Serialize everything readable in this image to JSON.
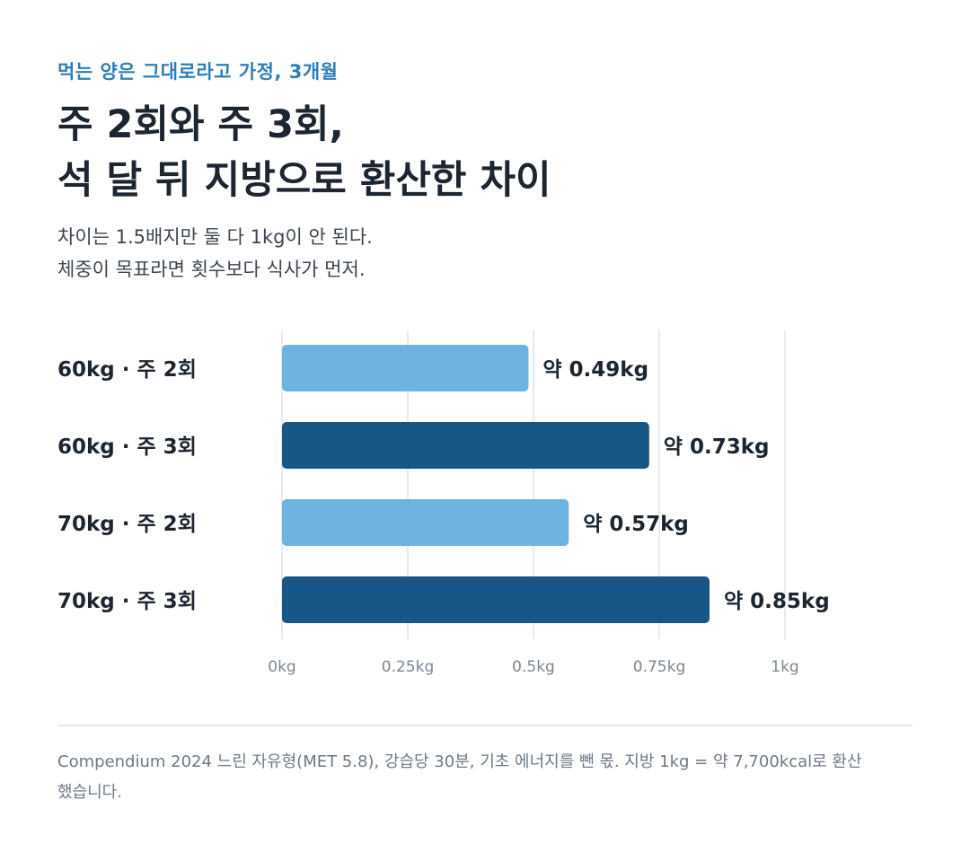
{
  "kicker": "먹는 양은 그대로라고 가정, 3개월",
  "title_lines": [
    "주 2회와 주 3회,",
    "석 달 뒤 지방으로 환산한 차이"
  ],
  "subtitle_lines": [
    "차이는 1.5배지만 둘 다 1kg이 안 된다.",
    "체중이 목표라면 횟수보다 식사가 먼저."
  ],
  "footnote": "Compendium 2024 느린 자유형(MET 5.8), 강습당 30분, 기초 에너지를 뺀 몫. 지방 1kg = 약 7,700kcal로 환산했습니다.",
  "colors": {
    "light_bar": "#6db3e1",
    "dark_bar": "#175787",
    "grid": "#e6ebef",
    "label": "#1c2530",
    "tick": "#7c8792"
  },
  "chart_data": {
    "type": "bar",
    "orientation": "horizontal",
    "categories": [
      "60kg · 주 2회",
      "60kg · 주 3회",
      "70kg · 주 2회",
      "70kg · 주 3회"
    ],
    "values": [
      0.49,
      0.73,
      0.57,
      0.85
    ],
    "value_labels": [
      "약 0.49kg",
      "약 0.73kg",
      "약 0.57kg",
      "약 0.85kg"
    ],
    "bar_colors": [
      "light",
      "dark",
      "light",
      "dark"
    ],
    "x_ticks": [
      0,
      0.25,
      0.5,
      0.75,
      1
    ],
    "x_tick_labels": [
      "0kg",
      "0.25kg",
      "0.5kg",
      "0.75kg",
      "1kg"
    ],
    "xlim": [
      0,
      1
    ],
    "grid": true,
    "legend": "none"
  }
}
